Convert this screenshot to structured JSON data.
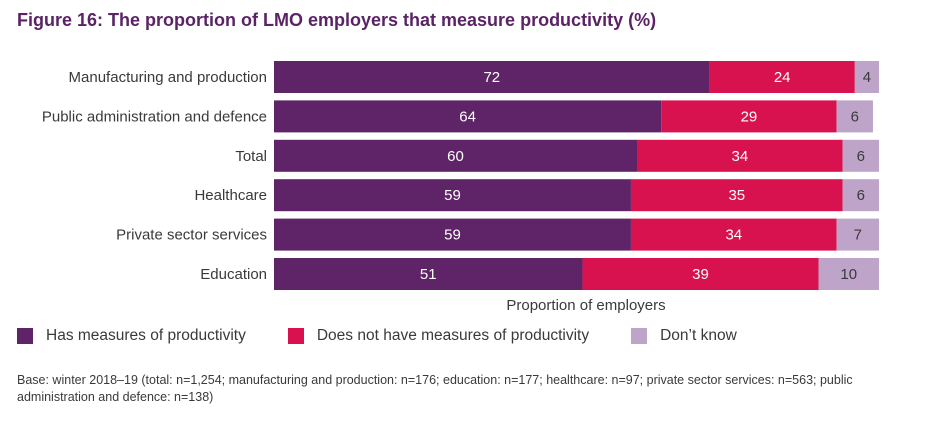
{
  "title": "Figure 16: The proportion of LMO employers that measure productivity (%)",
  "chart_data": {
    "type": "bar",
    "orientation": "horizontal",
    "stacked": true,
    "xlabel": "Proportion of employers",
    "xlim": [
      0,
      100
    ],
    "grid": false,
    "legend_position": "bottom",
    "categories": [
      "Manufacturing and production",
      "Public administration and defence",
      "Total",
      "Healthcare",
      "Private sector services",
      "Education"
    ],
    "series": [
      {
        "name": "Has measures of productivity",
        "color": "#5e2467",
        "label_color": "#ffffff",
        "values": [
          72,
          64,
          60,
          59,
          59,
          51
        ]
      },
      {
        "name": "Does not have measures of productivity",
        "color": "#d8124e",
        "label_color": "#ffffff",
        "values": [
          24,
          29,
          34,
          35,
          34,
          39
        ]
      },
      {
        "name": "Don’t know",
        "color": "#bfa4c9",
        "label_color": "#3a3a3a",
        "values": [
          4,
          6,
          6,
          6,
          7,
          10
        ]
      }
    ]
  },
  "footnote": "Base: winter 2018–19 (total: n=1,254; manufacturing and production: n=176; education: n=177; healthcare: n=97; private sector services: n=563; public administration and defence: n=138)"
}
